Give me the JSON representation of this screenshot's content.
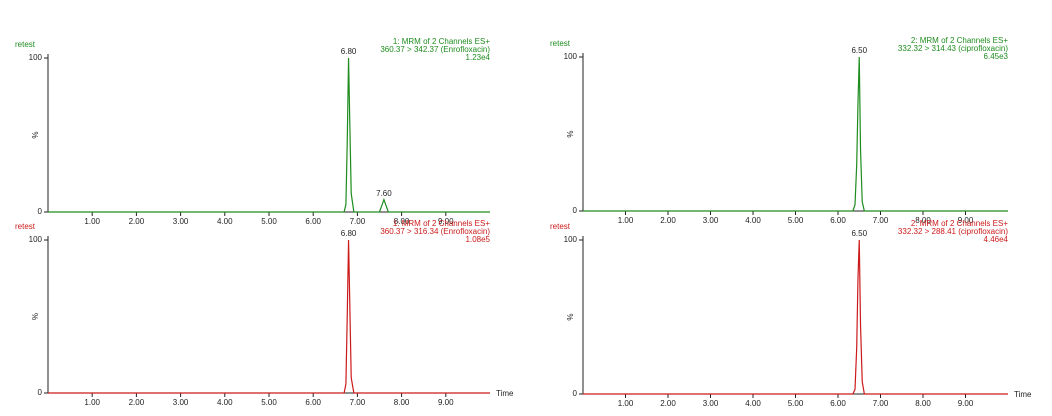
{
  "chart_data": [
    {
      "type": "line",
      "title": [
        "1: MRM of 2 Channels ES+",
        "360.37 > 342.37 (Enrofloxacin)",
        "1.23e4"
      ],
      "ylabel": "%",
      "x": [
        0,
        6.7,
        6.74,
        6.77,
        6.8,
        6.83,
        6.86,
        6.92,
        7.5,
        7.55,
        7.6,
        7.65,
        7.7,
        10
      ],
      "series": [
        {
          "name": "retest",
          "color": "#1e8c1e",
          "values": [
            0,
            0,
            5,
            45,
            100,
            55,
            12,
            0,
            0,
            4,
            8,
            4,
            0,
            0
          ]
        }
      ],
      "xlim": [
        0,
        10
      ],
      "xticks": [
        {
          "value": 1,
          "label": "1.00"
        },
        {
          "value": 2,
          "label": "2.00"
        },
        {
          "value": 3,
          "label": "3.00"
        },
        {
          "value": 4,
          "label": "4.00"
        },
        {
          "value": 5,
          "label": "5.00"
        },
        {
          "value": 6,
          "label": "6.00"
        },
        {
          "value": 7,
          "label": "7.00"
        },
        {
          "value": 8,
          "label": "8.00"
        },
        {
          "value": 9,
          "label": "9.00"
        }
      ],
      "ylim": [
        0,
        100
      ],
      "yticks": [
        0,
        100
      ],
      "peaks": [
        {
          "x": 6.8,
          "y": 100,
          "label": "6.80"
        },
        {
          "x": 7.6,
          "y": 8,
          "label": "7.60"
        }
      ]
    },
    {
      "type": "line",
      "title": [
        "2: MRM of 2 Channels ES+",
        "332.32 > 314.43 (ciprofloxacin)",
        "6.45e3"
      ],
      "ylabel": "%",
      "x": [
        0,
        6.35,
        6.4,
        6.44,
        6.47,
        6.5,
        6.53,
        6.57,
        6.62,
        10
      ],
      "series": [
        {
          "name": "retest",
          "color": "#1e8c1e",
          "values": [
            0,
            0,
            4,
            30,
            70,
            100,
            40,
            6,
            0,
            0
          ]
        }
      ],
      "xlim": [
        0,
        10
      ],
      "xticks": [
        {
          "value": 1,
          "label": "1.00"
        },
        {
          "value": 2,
          "label": "2.00"
        },
        {
          "value": 3,
          "label": "3.00"
        },
        {
          "value": 4,
          "label": "4.00"
        },
        {
          "value": 5,
          "label": "5.00"
        },
        {
          "value": 6,
          "label": "6.00"
        },
        {
          "value": 7,
          "label": "7.00"
        },
        {
          "value": 8,
          "label": "8.00"
        },
        {
          "value": 9,
          "label": "9.00"
        }
      ],
      "ylim": [
        0,
        100
      ],
      "yticks": [
        0,
        100
      ],
      "peaks": [
        {
          "x": 6.5,
          "y": 100,
          "label": "6.50"
        }
      ]
    },
    {
      "type": "line",
      "title": [
        "1: MRM of 2 Channels ES+",
        "360.37 > 316.34 (Enrofloxacin)",
        "1.08e5"
      ],
      "xlabel": "Time",
      "ylabel": "%",
      "x": [
        0,
        6.7,
        6.74,
        6.77,
        6.8,
        6.83,
        6.86,
        6.92,
        10
      ],
      "series": [
        {
          "name": "retest",
          "color": "#cc1a1a",
          "values": [
            0,
            0,
            6,
            50,
            100,
            55,
            10,
            0,
            0
          ]
        }
      ],
      "xlim": [
        0,
        10
      ],
      "xticks": [
        {
          "value": 1,
          "label": "1.00"
        },
        {
          "value": 2,
          "label": "2.00"
        },
        {
          "value": 3,
          "label": "3.00"
        },
        {
          "value": 4,
          "label": "4.00"
        },
        {
          "value": 5,
          "label": "5.00"
        },
        {
          "value": 6,
          "label": "6.00"
        },
        {
          "value": 7,
          "label": "7.00"
        },
        {
          "value": 8,
          "label": "8.00"
        },
        {
          "value": 9,
          "label": "9.00"
        }
      ],
      "ylim": [
        0,
        100
      ],
      "yticks": [
        0,
        100
      ],
      "peaks": [
        {
          "x": 6.8,
          "y": 100,
          "label": "6.80"
        }
      ]
    },
    {
      "type": "line",
      "title": [
        "2: MRM of 2 Channels ES+",
        "332.32 > 288.41 (ciprofloxacin)",
        "4.46e4"
      ],
      "xlabel": "Time",
      "ylabel": "%",
      "x": [
        0,
        6.35,
        6.4,
        6.44,
        6.47,
        6.5,
        6.53,
        6.57,
        6.62,
        10
      ],
      "series": [
        {
          "name": "retest",
          "color": "#cc1a1a",
          "values": [
            0,
            0,
            3,
            30,
            75,
            100,
            45,
            8,
            0,
            0
          ]
        }
      ],
      "xlim": [
        0,
        10
      ],
      "xticks": [
        {
          "value": 1,
          "label": "1.00"
        },
        {
          "value": 2,
          "label": "2.00"
        },
        {
          "value": 3,
          "label": "3.00"
        },
        {
          "value": 4,
          "label": "4.00"
        },
        {
          "value": 5,
          "label": "5.00"
        },
        {
          "value": 6,
          "label": "6.00"
        },
        {
          "value": 7,
          "label": "7.00"
        },
        {
          "value": 8,
          "label": "8.00"
        },
        {
          "value": 9,
          "label": "9.00"
        }
      ],
      "ylim": [
        0,
        100
      ],
      "yticks": [
        0,
        100
      ],
      "peaks": [
        {
          "x": 6.5,
          "y": 100,
          "label": "6.50"
        }
      ]
    }
  ]
}
